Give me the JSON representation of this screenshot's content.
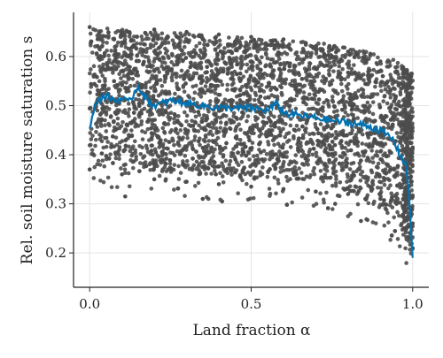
{
  "chart_data": {
    "type": "scatter",
    "title": "",
    "xlabel": "Land fraction α",
    "ylabel": "Rel. soil moisture saturation s",
    "xlim": [
      -0.05,
      1.05
    ],
    "ylim": [
      0.13,
      0.69
    ],
    "xticks": [
      0.0,
      0.5,
      1.0
    ],
    "xtick_labels": [
      "0.0",
      "0.5",
      "1.0"
    ],
    "yticks": [
      0.2,
      0.3,
      0.4,
      0.5,
      0.6
    ],
    "ytick_labels": [
      "0.2",
      "0.3",
      "0.4",
      "0.5",
      "0.6"
    ],
    "grid": true,
    "series": [
      {
        "kind": "scatter",
        "color": "#4d4d4d",
        "description_points": [
          [
            0.0,
            0.37
          ],
          [
            0.0,
            0.66
          ],
          [
            0.1,
            0.36
          ],
          [
            0.1,
            0.65
          ],
          [
            0.2,
            0.35
          ],
          [
            0.2,
            0.655
          ],
          [
            0.3,
            0.345
          ],
          [
            0.3,
            0.65
          ],
          [
            0.4,
            0.34
          ],
          [
            0.4,
            0.645
          ],
          [
            0.5,
            0.335
          ],
          [
            0.5,
            0.64
          ],
          [
            0.6,
            0.33
          ],
          [
            0.6,
            0.635
          ],
          [
            0.7,
            0.325
          ],
          [
            0.7,
            0.62
          ],
          [
            0.8,
            0.32
          ],
          [
            0.8,
            0.61
          ],
          [
            0.9,
            0.31
          ],
          [
            0.9,
            0.59
          ],
          [
            0.95,
            0.3
          ],
          [
            0.95,
            0.57
          ],
          [
            0.98,
            0.27
          ],
          [
            0.98,
            0.5
          ],
          [
            1.0,
            0.21
          ],
          [
            1.0,
            0.26
          ],
          [
            0.11,
            0.315
          ],
          [
            0.35,
            0.31
          ],
          [
            0.41,
            0.305
          ],
          [
            0.84,
            0.265
          ],
          [
            0.76,
            0.3
          ]
        ]
      },
      {
        "kind": "line",
        "color": "#0072b2",
        "x": [
          0.0,
          0.02,
          0.05,
          0.08,
          0.1,
          0.12,
          0.15,
          0.18,
          0.2,
          0.25,
          0.3,
          0.35,
          0.4,
          0.45,
          0.5,
          0.55,
          0.58,
          0.6,
          0.65,
          0.7,
          0.75,
          0.8,
          0.85,
          0.9,
          0.94,
          0.96,
          0.98,
          0.99,
          1.0
        ],
        "y": [
          0.45,
          0.51,
          0.52,
          0.51,
          0.515,
          0.505,
          0.54,
          0.51,
          0.5,
          0.51,
          0.505,
          0.5,
          0.495,
          0.495,
          0.495,
          0.49,
          0.505,
          0.485,
          0.48,
          0.475,
          0.47,
          0.465,
          0.46,
          0.45,
          0.43,
          0.4,
          0.38,
          0.3,
          0.19
        ]
      }
    ]
  }
}
